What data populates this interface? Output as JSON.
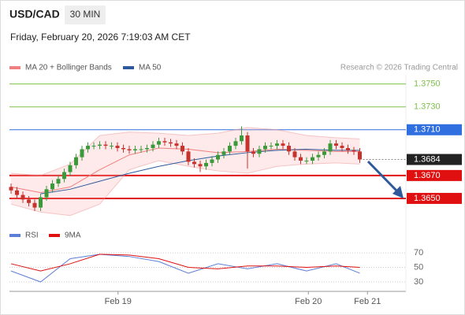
{
  "chart_data": {
    "type": "candlestick",
    "title": "USD/CAD",
    "timeframe": "30 MIN",
    "subtitle": "Friday, February 20, 2026 7:19:03 AM CET",
    "credit": "Research © 2026 Trading Central",
    "open": [
      1.366,
      1.3657,
      1.3653,
      1.3649,
      1.3646,
      1.3642,
      1.3651,
      1.3658,
      1.3663,
      1.3667,
      1.3673,
      1.3679,
      1.3686,
      1.3693,
      1.3696,
      1.3696,
      1.3697,
      1.3696,
      1.3696,
      1.3694,
      1.3693,
      1.3692,
      1.3693,
      1.3693,
      1.3694,
      1.3697,
      1.37,
      1.3699,
      1.3698,
      1.3696,
      1.3691,
      1.3682,
      1.368,
      1.3678,
      1.3681,
      1.3684,
      1.3688,
      1.3691,
      1.3696,
      1.37,
      1.3705,
      1.3691,
      1.3689,
      1.3693,
      1.3696,
      1.3696,
      1.3698,
      1.3696,
      1.3691,
      1.3686,
      1.3683,
      1.3683,
      1.3686,
      1.3688,
      1.3691,
      1.3698,
      1.3696,
      1.3694,
      1.3692,
      1.3691
    ],
    "high": [
      1.3663,
      1.366,
      1.3656,
      1.3652,
      1.3649,
      1.3654,
      1.3661,
      1.3666,
      1.367,
      1.3676,
      1.3682,
      1.3689,
      1.3696,
      1.3699,
      1.3699,
      1.37,
      1.37,
      1.3699,
      1.3699,
      1.3697,
      1.3696,
      1.3696,
      1.3696,
      1.3697,
      1.37,
      1.3703,
      1.3703,
      1.3702,
      1.3701,
      1.3699,
      1.3694,
      1.3685,
      1.3683,
      1.3684,
      1.3687,
      1.3691,
      1.3694,
      1.3699,
      1.3703,
      1.3713,
      1.3708,
      1.3694,
      1.3696,
      1.3699,
      1.3699,
      1.3701,
      1.3701,
      1.3699,
      1.3694,
      1.3689,
      1.3686,
      1.3689,
      1.3691,
      1.3694,
      1.3701,
      1.3701,
      1.3699,
      1.3697,
      1.3695,
      1.3694
    ],
    "low": [
      1.3654,
      1.365,
      1.3646,
      1.3643,
      1.3639,
      1.3639,
      1.3648,
      1.3655,
      1.366,
      1.3664,
      1.367,
      1.3676,
      1.3683,
      1.369,
      1.3693,
      1.3693,
      1.3693,
      1.3693,
      1.3691,
      1.369,
      1.3689,
      1.3689,
      1.369,
      1.369,
      1.3691,
      1.3694,
      1.3696,
      1.3695,
      1.3693,
      1.3688,
      1.3679,
      1.3677,
      1.3673,
      1.3675,
      1.3678,
      1.3681,
      1.3685,
      1.3688,
      1.3693,
      1.3697,
      1.3676,
      1.3686,
      1.3686,
      1.369,
      1.3693,
      1.3693,
      1.3693,
      1.3688,
      1.3683,
      1.368,
      1.368,
      1.368,
      1.3683,
      1.3685,
      1.3688,
      1.3693,
      1.3691,
      1.3689,
      1.3688,
      1.3681
    ],
    "close": [
      1.3657,
      1.3653,
      1.3649,
      1.3646,
      1.3642,
      1.3651,
      1.3658,
      1.3663,
      1.3667,
      1.3673,
      1.3679,
      1.3686,
      1.3693,
      1.3696,
      1.3696,
      1.3697,
      1.3696,
      1.3696,
      1.3694,
      1.3693,
      1.3692,
      1.3693,
      1.3693,
      1.3694,
      1.3697,
      1.37,
      1.3699,
      1.3698,
      1.3696,
      1.3691,
      1.3682,
      1.368,
      1.3678,
      1.3681,
      1.3684,
      1.3688,
      1.3691,
      1.3696,
      1.37,
      1.3705,
      1.3691,
      1.3689,
      1.3693,
      1.3696,
      1.3696,
      1.3698,
      1.3696,
      1.3691,
      1.3686,
      1.3683,
      1.3683,
      1.3686,
      1.3688,
      1.3691,
      1.3698,
      1.3696,
      1.3694,
      1.3692,
      1.3691,
      1.3684
    ],
    "up_color": "#3a9a3a",
    "down_color": "#c8322c",
    "overlay_x": [
      0,
      5,
      10,
      15,
      20,
      25,
      30,
      35,
      40,
      45,
      50,
      55,
      59
    ],
    "overlays": [
      {
        "name": "MA 20 + Bollinger Bands",
        "color": "#f08080",
        "values": [
          1.366,
          1.3655,
          1.366,
          1.3675,
          1.3688,
          1.3694,
          1.3693,
          1.369,
          1.3691,
          1.3693,
          1.3692,
          1.3691,
          1.3691
        ],
        "upper": [
          1.3672,
          1.367,
          1.368,
          1.3705,
          1.3708,
          1.3707,
          1.3705,
          1.3707,
          1.3712,
          1.371,
          1.3705,
          1.3703,
          1.3702
        ],
        "lower": [
          1.3645,
          1.3638,
          1.3635,
          1.3645,
          1.3675,
          1.3683,
          1.3678,
          1.3674,
          1.3672,
          1.3678,
          1.368,
          1.3681,
          1.368
        ]
      },
      {
        "name": "MA 50",
        "color": "#2e5a9c",
        "values": [
          null,
          1.3654,
          1.3658,
          1.3665,
          1.3672,
          1.3678,
          1.3683,
          1.3687,
          1.369,
          1.3692,
          1.3693,
          1.3692,
          1.3692
        ]
      }
    ],
    "levels": [
      {
        "value": 1.375,
        "label": "1.3750",
        "color": "#7cbf4a",
        "style": "text"
      },
      {
        "value": 1.373,
        "label": "1.3730",
        "color": "#7cbf4a",
        "style": "text"
      },
      {
        "value": 1.371,
        "label": "1.3710",
        "color": "#2f6fe0",
        "style": "box"
      },
      {
        "value": 1.367,
        "label": "1.3670",
        "color": "#e01010",
        "style": "box"
      },
      {
        "value": 1.365,
        "label": "1.3650",
        "color": "#e01010",
        "style": "box"
      }
    ],
    "last_price": 1.3684,
    "ylim": [
      1.363,
      1.3758
    ],
    "xlim": [
      -0.27,
      66.8
    ],
    "xticks": [
      {
        "value": 18.1,
        "label": "Feb 19"
      },
      {
        "value": 50.3,
        "label": "Feb 20"
      },
      {
        "value": 60.3,
        "label": "Feb 21"
      }
    ],
    "rsi": {
      "ylim": [
        17,
        82
      ],
      "yticks": [
        70,
        50,
        30
      ],
      "series": [
        {
          "name": "RSI",
          "color": "#5b7fd6",
          "values": [
            45,
            30,
            62,
            68,
            65,
            58,
            42,
            55,
            48,
            55,
            45,
            55,
            42
          ]
        },
        {
          "name": "9MA",
          "color": "#e01010",
          "values": [
            55,
            45,
            55,
            68,
            67,
            62,
            50,
            48,
            52,
            52,
            50,
            52,
            50
          ]
        }
      ]
    }
  }
}
